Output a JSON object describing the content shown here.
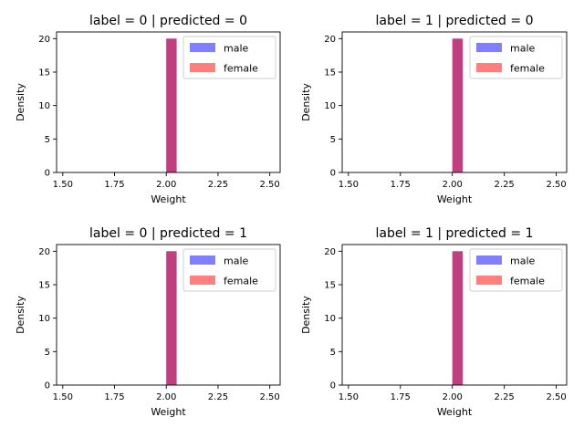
{
  "figure": {
    "colors": {
      "male": "#0000ff",
      "female": "#ff0000",
      "series_alpha": 0.5,
      "axes": "#000000",
      "background": "#ffffff"
    }
  },
  "chart_data": [
    {
      "type": "bar",
      "title": "label = 0 | predicted = 0",
      "xlabel": "Weight",
      "ylabel": "Density",
      "xlim": [
        1.47,
        2.55
      ],
      "ylim": [
        0,
        21
      ],
      "xticks": [
        1.5,
        1.75,
        2.0,
        2.25,
        2.5
      ],
      "xtick_labels": [
        "1.50",
        "1.75",
        "2.00",
        "2.25",
        "2.50"
      ],
      "yticks": [
        0,
        5,
        10,
        15,
        20
      ],
      "yticklabels": [
        "0",
        "5",
        "10",
        "15",
        "20"
      ],
      "legend_position": "top-right",
      "series": [
        {
          "name": "male",
          "bins": [
            {
              "x0": 2.0,
              "x1": 2.05,
              "density": 20
            }
          ]
        },
        {
          "name": "female",
          "bins": [
            {
              "x0": 2.0,
              "x1": 2.05,
              "density": 20
            }
          ]
        }
      ]
    },
    {
      "type": "bar",
      "title": "label = 1 | predicted = 0",
      "xlabel": "Weight",
      "ylabel": "Density",
      "xlim": [
        1.47,
        2.55
      ],
      "ylim": [
        0,
        21
      ],
      "xticks": [
        1.5,
        1.75,
        2.0,
        2.25,
        2.5
      ],
      "xtick_labels": [
        "1.50",
        "1.75",
        "2.00",
        "2.25",
        "2.50"
      ],
      "yticks": [
        0,
        5,
        10,
        15,
        20
      ],
      "yticklabels": [
        "0",
        "5",
        "10",
        "15",
        "20"
      ],
      "legend_position": "top-right",
      "series": [
        {
          "name": "male",
          "bins": [
            {
              "x0": 2.0,
              "x1": 2.05,
              "density": 20
            }
          ]
        },
        {
          "name": "female",
          "bins": [
            {
              "x0": 2.0,
              "x1": 2.05,
              "density": 20
            }
          ]
        }
      ]
    },
    {
      "type": "bar",
      "title": "label = 0 | predicted = 1",
      "xlabel": "Weight",
      "ylabel": "Density",
      "xlim": [
        1.47,
        2.55
      ],
      "ylim": [
        0,
        21
      ],
      "xticks": [
        1.5,
        1.75,
        2.0,
        2.25,
        2.5
      ],
      "xtick_labels": [
        "1.50",
        "1.75",
        "2.00",
        "2.25",
        "2.50"
      ],
      "yticks": [
        0,
        5,
        10,
        15,
        20
      ],
      "yticklabels": [
        "0",
        "5",
        "10",
        "15",
        "20"
      ],
      "legend_position": "top-right",
      "series": [
        {
          "name": "male",
          "bins": [
            {
              "x0": 2.0,
              "x1": 2.05,
              "density": 20
            }
          ]
        },
        {
          "name": "female",
          "bins": [
            {
              "x0": 2.0,
              "x1": 2.05,
              "density": 20
            }
          ]
        }
      ]
    },
    {
      "type": "bar",
      "title": "label = 1 | predicted = 1",
      "xlabel": "Weight",
      "ylabel": "Density",
      "xlim": [
        1.47,
        2.55
      ],
      "ylim": [
        0,
        21
      ],
      "xticks": [
        1.5,
        1.75,
        2.0,
        2.25,
        2.5
      ],
      "xtick_labels": [
        "1.50",
        "1.75",
        "2.00",
        "2.25",
        "2.50"
      ],
      "yticks": [
        0,
        5,
        10,
        15,
        20
      ],
      "yticklabels": [
        "0",
        "5",
        "10",
        "15",
        "20"
      ],
      "legend_position": "top-right",
      "series": [
        {
          "name": "male",
          "bins": [
            {
              "x0": 2.0,
              "x1": 2.05,
              "density": 20
            }
          ]
        },
        {
          "name": "female",
          "bins": [
            {
              "x0": 2.0,
              "x1": 2.05,
              "density": 20
            }
          ]
        }
      ]
    }
  ]
}
